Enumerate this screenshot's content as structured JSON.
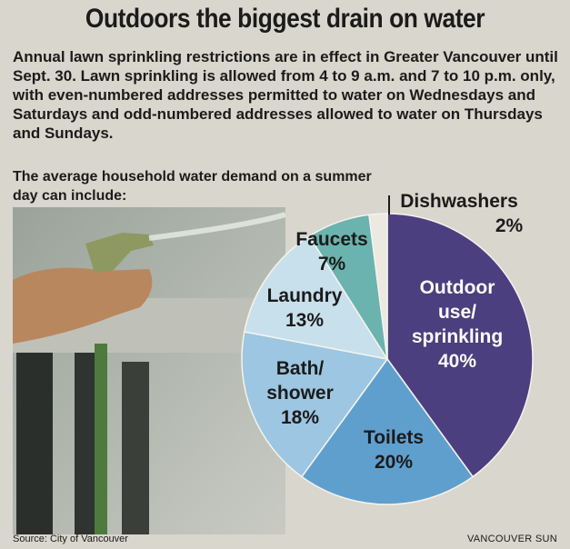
{
  "title": "Outdoors the biggest drain on water",
  "intro": "Annual lawn sprinkling restrictions are in effect in Greater Vancouver until Sept. 30. Lawn sprinkling is allowed from 4 to 9 a.m. and 7 to 10 p.m. only, with even-numbered addresses permitted to water on Wednesdays and Saturdays and odd-numbered addresses allowed to water on Thursdays and Sundays.",
  "subhead": "The average household water demand on a summer day can include:",
  "source": "Source: City of Vancouver",
  "credit": "VANCOUVER SUN",
  "chart_data": {
    "type": "pie",
    "title": "",
    "slices": [
      {
        "label": [
          "Outdoor",
          "use/",
          "sprinkling"
        ],
        "value": 40,
        "value_label": "40%",
        "color": "#4c3f7f",
        "text_color": "#ffffff"
      },
      {
        "label": [
          "Toilets"
        ],
        "value": 20,
        "value_label": "20%",
        "color": "#5f9fce",
        "text_color": "#1b1b1b"
      },
      {
        "label": [
          "Bath/",
          "shower"
        ],
        "value": 18,
        "value_label": "18%",
        "color": "#9cc6e1",
        "text_color": "#1b1b1b"
      },
      {
        "label": [
          "Laundry"
        ],
        "value": 13,
        "value_label": "13%",
        "color": "#c8e0ec",
        "text_color": "#1b1b1b"
      },
      {
        "label": [
          "Faucets"
        ],
        "value": 7,
        "value_label": "7%",
        "color": "#6bb3ae",
        "text_color": "#1b1b1b"
      },
      {
        "label": [
          "Dishwashers"
        ],
        "value": 2,
        "value_label": "2%",
        "color": "#ece9e0",
        "text_color": "#1b1b1b"
      }
    ]
  }
}
